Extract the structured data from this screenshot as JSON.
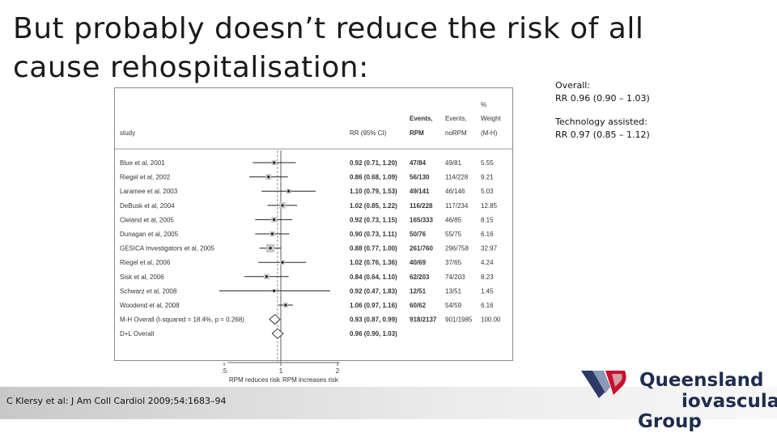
{
  "slide": {
    "title_line1": "But probably doesn’t reduce the risk of all",
    "title_line2": "cause rehospitalisation:",
    "notes": [
      {
        "label": "Overall:",
        "value": "RR 0.96 (0.90 – 1.03)"
      },
      {
        "label": "Technology assisted:",
        "value": "RR 0.97 (0.85 – 1.12)"
      }
    ],
    "citation": "C Klersy et al: J Am Coll Cardiol 2009;54:1683–94",
    "logo": {
      "line1": "Queensland",
      "line2": "iovascular",
      "line3": "Group",
      "colors": [
        "#2b3a67",
        "#8a99b4",
        "#c8102e",
        "#d4a0a8"
      ]
    }
  },
  "chart_data": {
    "type": "forest",
    "headers": {
      "study": "study",
      "rr": "RR (95% CI)",
      "events_rpm_1": "Events,",
      "events_rpm_2": "RPM",
      "events_norpm_1": "Events,",
      "events_norpm_2": "noRPM",
      "weight_1": "%",
      "weight_2": "Weight",
      "weight_3": "(M-H)"
    },
    "studies": [
      {
        "study": "Blue et al, 2001",
        "rr": 0.92,
        "lo": 0.71,
        "hi": 1.2,
        "rr_text": "0.92 (0.71, 1.20)",
        "rpm": "47/84",
        "norpm": "49/81",
        "weight": 5.55,
        "weight_text": "5.55"
      },
      {
        "study": "Riegel et al, 2002",
        "rr": 0.86,
        "lo": 0.68,
        "hi": 1.09,
        "rr_text": "0.86 (0.68, 1.09)",
        "rpm": "56/130",
        "norpm": "114/228",
        "weight": 9.21,
        "weight_text": "9.21"
      },
      {
        "study": "Laramee et al, 2003",
        "rr": 1.1,
        "lo": 0.79,
        "hi": 1.53,
        "rr_text": "1.10 (0.79, 1.53)",
        "rpm": "49/141",
        "norpm": "46/146",
        "weight": 5.03,
        "weight_text": "5.03"
      },
      {
        "study": "DeBusk et al, 2004",
        "rr": 1.02,
        "lo": 0.85,
        "hi": 1.22,
        "rr_text": "1.02 (0.85, 1.22)",
        "rpm": "116/228",
        "norpm": "117/234",
        "weight": 12.85,
        "weight_text": "12.85"
      },
      {
        "study": "Cleland et al, 2005",
        "rr": 0.92,
        "lo": 0.73,
        "hi": 1.15,
        "rr_text": "0.92 (0.73, 1.15)",
        "rpm": "165/333",
        "norpm": "46/85",
        "weight": 8.15,
        "weight_text": "8.15"
      },
      {
        "study": "Dunagan et al, 2005",
        "rr": 0.9,
        "lo": 0.73,
        "hi": 1.11,
        "rr_text": "0.90 (0.73, 1.11)",
        "rpm": "50/76",
        "norpm": "55/75",
        "weight": 6.16,
        "weight_text": "6.16"
      },
      {
        "study": "GESICA Investigators et al, 2005",
        "rr": 0.88,
        "lo": 0.77,
        "hi": 1.0,
        "rr_text": "0.88 (0.77, 1.00)",
        "rpm": "261/760",
        "norpm": "296/758",
        "weight": 32.97,
        "weight_text": "32.97"
      },
      {
        "study": "Riegel et al, 2006",
        "rr": 1.02,
        "lo": 0.76,
        "hi": 1.36,
        "rr_text": "1.02 (0.76, 1.36)",
        "rpm": "40/69",
        "norpm": "37/65",
        "weight": 4.24,
        "weight_text": "4.24"
      },
      {
        "study": "Sisk et al, 2006",
        "rr": 0.84,
        "lo": 0.64,
        "hi": 1.1,
        "rr_text": "0.84 (0.64, 1.10)",
        "rpm": "62/203",
        "norpm": "74/203",
        "weight": 8.23,
        "weight_text": "8.23"
      },
      {
        "study": "Schwarz et al, 2008",
        "rr": 0.92,
        "lo": 0.47,
        "hi": 1.83,
        "rr_text": "0.92 (0.47, 1.83)",
        "rpm": "12/51",
        "norpm": "13/51",
        "weight": 1.45,
        "weight_text": "1.45"
      },
      {
        "study": "Woodend et al, 2008",
        "rr": 1.06,
        "lo": 0.97,
        "hi": 1.16,
        "rr_text": "1.06 (0.97, 1.16)",
        "rpm": "60/62",
        "norpm": "54/59",
        "weight": 6.16,
        "weight_text": "6.16"
      }
    ],
    "overall": [
      {
        "study": "M-H Overall  (I-squared = 18.4%, p = 0.268)",
        "rr": 0.93,
        "lo": 0.87,
        "hi": 0.99,
        "rr_text": "0.93 (0.87, 0.99)",
        "rpm": "918/2137",
        "norpm": "901/1985",
        "weight_text": "100.00"
      },
      {
        "study": "D+L Overall",
        "rr": 0.96,
        "lo": 0.9,
        "hi": 1.03,
        "rr_text": "0.96 (0.90, 1.03)",
        "rpm": "",
        "norpm": "",
        "weight_text": ""
      }
    ],
    "x_scale": "log",
    "xlim": [
      0.45,
      2.2
    ],
    "xticks": [
      0.5,
      1,
      2
    ],
    "xtick_labels": [
      ".5",
      "1",
      "2"
    ],
    "xlabel_left": "RPM reduces risk",
    "xlabel_right": "RPM increases risk",
    "null_line": 1,
    "dashed_line": 0.96
  }
}
